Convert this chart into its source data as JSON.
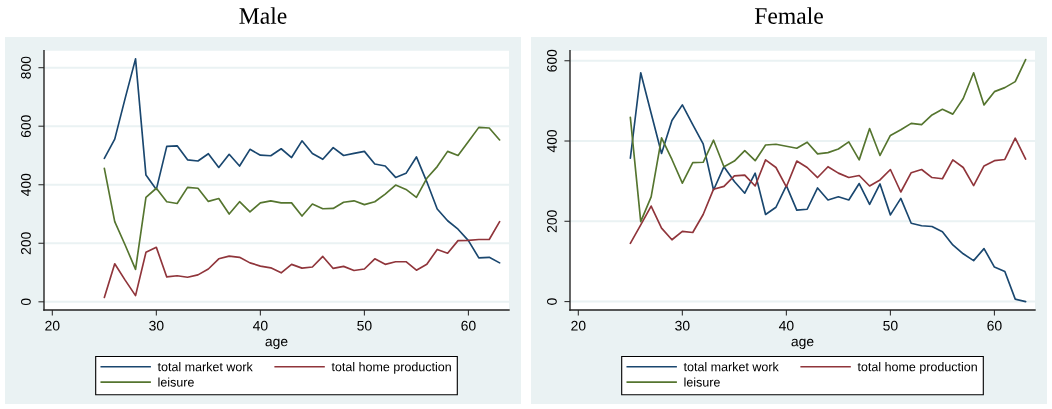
{
  "chart_data": [
    {
      "type": "line",
      "title": "Male",
      "xlabel": "age",
      "x": [
        25,
        26,
        27,
        28,
        29,
        30,
        31,
        32,
        33,
        34,
        35,
        36,
        37,
        38,
        39,
        40,
        41,
        42,
        43,
        44,
        45,
        46,
        47,
        48,
        49,
        50,
        51,
        52,
        53,
        54,
        55,
        56,
        57,
        58,
        59,
        60,
        61,
        62,
        63
      ],
      "xlim": [
        19.2,
        63.9
      ],
      "xticks": [
        20,
        30,
        40,
        50,
        60
      ],
      "ylim": [
        -28,
        858
      ],
      "yticks": [
        0,
        200,
        400,
        600,
        800
      ],
      "grid": "y",
      "legend": "bottom",
      "series": [
        {
          "name": "total market work",
          "color": "#1a476f",
          "values": [
            490,
            556,
            695,
            830,
            433,
            384,
            531,
            533,
            485,
            481,
            506,
            459,
            504,
            464,
            521,
            501,
            499,
            523,
            493,
            550,
            507,
            487,
            527,
            500,
            507,
            514,
            471,
            464,
            425,
            439,
            495,
            410,
            317,
            277,
            248,
            209,
            150,
            152,
            133
          ]
        },
        {
          "name": "total home production",
          "color": "#90353b",
          "values": [
            15,
            130,
            74,
            21,
            169,
            186,
            85,
            89,
            84,
            92,
            112,
            147,
            156,
            152,
            133,
            122,
            116,
            99,
            128,
            115,
            119,
            155,
            114,
            121,
            107,
            112,
            147,
            128,
            137,
            137,
            108,
            128,
            179,
            166,
            209,
            210,
            213,
            213,
            274
          ]
        },
        {
          "name": "leisure",
          "color": "#55752f",
          "values": [
            456,
            274,
            194,
            111,
            357,
            388,
            342,
            336,
            391,
            388,
            343,
            353,
            300,
            342,
            307,
            338,
            345,
            338,
            338,
            293,
            334,
            318,
            319,
            340,
            345,
            332,
            342,
            368,
            399,
            384,
            357,
            422,
            462,
            514,
            500,
            548,
            596,
            594,
            553
          ]
        }
      ]
    },
    {
      "type": "line",
      "title": "Female",
      "xlabel": "age",
      "x": [
        25,
        26,
        27,
        28,
        29,
        30,
        31,
        32,
        33,
        34,
        35,
        36,
        37,
        38,
        39,
        40,
        41,
        42,
        43,
        44,
        45,
        46,
        47,
        48,
        49,
        50,
        51,
        52,
        53,
        54,
        55,
        56,
        57,
        58,
        59,
        60,
        61,
        62,
        63
      ],
      "xlim": [
        19.2,
        63.9
      ],
      "xticks": [
        20,
        30,
        40,
        50,
        60
      ],
      "ylim": [
        -21,
        625
      ],
      "yticks": [
        0,
        200,
        400,
        600
      ],
      "grid": "y",
      "legend": "bottom",
      "series": [
        {
          "name": "total market work",
          "color": "#1a476f",
          "values": [
            357,
            570,
            469,
            369,
            451,
            490,
            441,
            393,
            278,
            336,
            299,
            270,
            320,
            217,
            235,
            289,
            228,
            230,
            283,
            253,
            261,
            253,
            294,
            242,
            293,
            216,
            257,
            195,
            189,
            187,
            174,
            141,
            119,
            102,
            132,
            86,
            75,
            6,
            0
          ]
        },
        {
          "name": "total home production",
          "color": "#90353b",
          "values": [
            145,
            191,
            238,
            183,
            154,
            175,
            172,
            217,
            280,
            287,
            313,
            315,
            288,
            353,
            334,
            286,
            350,
            334,
            309,
            336,
            320,
            309,
            314,
            288,
            303,
            329,
            273,
            321,
            329,
            309,
            306,
            353,
            334,
            289,
            338,
            351,
            354,
            407,
            355
          ]
        },
        {
          "name": "leisure",
          "color": "#55752f",
          "values": [
            459,
            199,
            261,
            408,
            354,
            295,
            346,
            347,
            402,
            336,
            350,
            376,
            351,
            390,
            392,
            387,
            382,
            397,
            368,
            371,
            380,
            398,
            353,
            431,
            364,
            414,
            428,
            444,
            441,
            465,
            479,
            467,
            506,
            570,
            490,
            523,
            533,
            548,
            603
          ]
        }
      ]
    }
  ]
}
